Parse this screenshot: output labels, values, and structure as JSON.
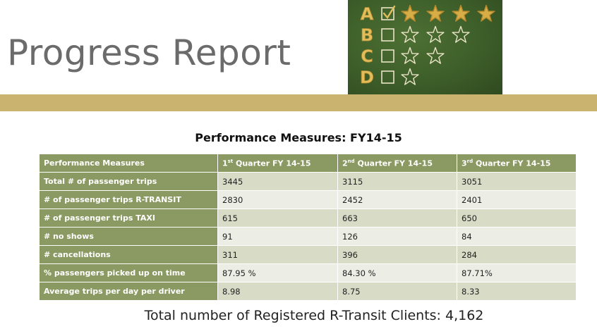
{
  "slide": {
    "title": "Progress Report",
    "heading": "Performance Measures: FY14-15",
    "footer": "Total number of Registered R-Transit Clients: 4,162"
  },
  "chalkboard": {
    "grades": [
      {
        "letter": "A",
        "checked": true,
        "stars": 4
      },
      {
        "letter": "B",
        "checked": false,
        "stars": 3
      },
      {
        "letter": "C",
        "checked": false,
        "stars": 2
      },
      {
        "letter": "D",
        "checked": false,
        "stars": 1
      }
    ]
  },
  "table": {
    "header": {
      "label": "Performance Measures",
      "quarters": [
        {
          "num": "1",
          "sup": "st",
          "text": " Quarter FY 14-15"
        },
        {
          "num": "2",
          "sup": "nd",
          "text": " Quarter FY 14-15"
        },
        {
          "num": "3",
          "sup": "rd",
          "text": " Quarter FY 14-15"
        }
      ]
    },
    "rows": [
      {
        "label": "Total # of passenger trips",
        "values": [
          "3445",
          "3115",
          "3051"
        ]
      },
      {
        "label": "# of passenger trips R-TRANSIT",
        "values": [
          "2830",
          "2452",
          "2401"
        ]
      },
      {
        "label": "# of passenger trips TAXI",
        "values": [
          "615",
          "663",
          "650"
        ]
      },
      {
        "label": "# no shows",
        "values": [
          "91",
          "126",
          "84"
        ]
      },
      {
        "label": "# cancellations",
        "values": [
          "311",
          "396",
          "284"
        ]
      },
      {
        "label": "% passengers picked up on time",
        "values": [
          "87.95 %",
          "84.30 %",
          "87.71%"
        ]
      },
      {
        "label": "Average trips per day per driver",
        "values": [
          "8.98",
          "8.75",
          "8.33"
        ]
      }
    ]
  },
  "colors": {
    "title": "#6b6b6b",
    "gold_bar": "#c9b36e",
    "table_header": "#8a9a62",
    "row_odd": "#d8dcc7",
    "row_even": "#ecede4",
    "chalk_letter": "#e2bd5c",
    "chalk_line": "#e9e3c6",
    "star_fill": "#d7ad47"
  }
}
